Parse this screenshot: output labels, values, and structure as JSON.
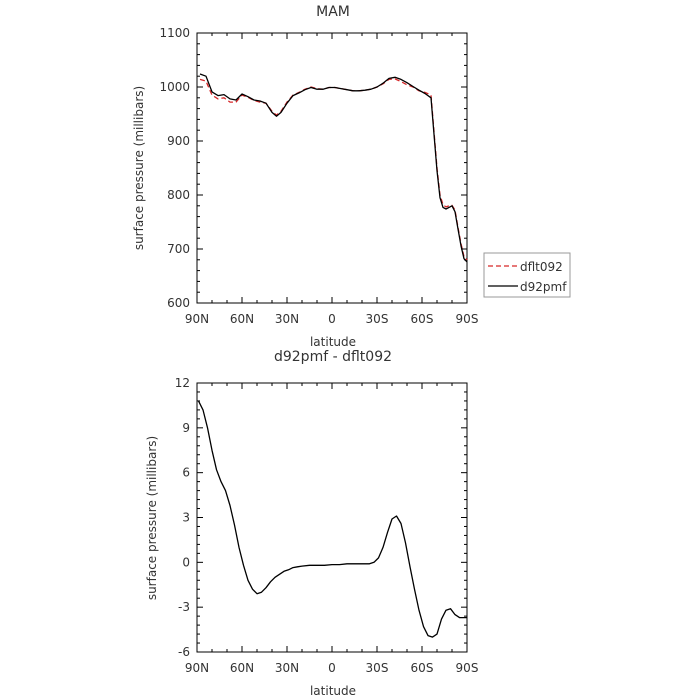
{
  "chart_data": [
    {
      "type": "line",
      "title": "MAM",
      "xlabel": "latitude",
      "ylabel": "surface pressure (millibars)",
      "xlim": [
        90,
        -90
      ],
      "ylim": [
        600,
        1100
      ],
      "x_ticks": [
        90,
        60,
        30,
        0,
        -30,
        -60,
        -90
      ],
      "x_tick_labels": [
        "90N",
        "60N",
        "30N",
        "0",
        "30S",
        "60S",
        "90S"
      ],
      "y_ticks": [
        600,
        700,
        800,
        900,
        1000,
        1100
      ],
      "y_tick_labels": [
        "600",
        "700",
        "800",
        "900",
        "1000",
        "1100"
      ],
      "legend_position": "right, outside plot",
      "x": [
        88,
        84,
        80,
        76,
        72,
        68,
        64,
        60,
        56,
        52,
        48,
        44,
        40,
        37,
        34,
        30,
        26,
        22,
        18,
        14,
        10,
        6,
        2,
        -2,
        -6,
        -10,
        -14,
        -18,
        -22,
        -26,
        -30,
        -34,
        -38,
        -42,
        -46,
        -50,
        -54,
        -58,
        -62,
        -66,
        -70,
        -72,
        -74,
        -76,
        -78,
        -80,
        -82,
        -84,
        -86,
        -88,
        -90
      ],
      "series": [
        {
          "name": "dflt092",
          "color": "#d62728",
          "dash": "5,3",
          "values": [
            1014,
            1011,
            985,
            978,
            980,
            972,
            972,
            985,
            981,
            975,
            972,
            970,
            955,
            948,
            955,
            972,
            985,
            990,
            996,
            1000,
            997,
            996,
            999,
            999,
            997,
            995,
            993,
            993,
            994,
            996,
            1000,
            1006,
            1014,
            1015,
            1010,
            1004,
            1000,
            993,
            990,
            985,
            850,
            800,
            782,
            778,
            780,
            781,
            772,
            740,
            710,
            686,
            680
          ]
        },
        {
          "name": "d92pmf",
          "color": "#000000",
          "dash": "",
          "values": [
            1024,
            1020,
            991,
            984,
            986,
            978,
            976,
            987,
            982,
            976,
            974,
            970,
            953,
            946,
            953,
            970,
            984,
            989,
            995,
            999,
            996,
            996,
            999,
            999,
            997,
            995,
            993,
            993,
            994,
            996,
            1000,
            1007,
            1016,
            1018,
            1014,
            1008,
            1001,
            994,
            988,
            980,
            845,
            795,
            777,
            774,
            777,
            780,
            769,
            737,
            706,
            682,
            676
          ]
        }
      ]
    },
    {
      "type": "line",
      "title": "d92pmf - dflt092",
      "xlabel": "latitude",
      "ylabel": "surface pressure (millibars)",
      "xlim": [
        90,
        -90
      ],
      "ylim": [
        -6,
        12
      ],
      "x_ticks": [
        90,
        60,
        30,
        0,
        -30,
        -60,
        -90
      ],
      "x_tick_labels": [
        "90N",
        "60N",
        "30N",
        "0",
        "30S",
        "60S",
        "90S"
      ],
      "y_ticks": [
        -6,
        -3,
        0,
        3,
        6,
        9,
        12
      ],
      "y_tick_labels": [
        "-6",
        "-3",
        "0",
        "3",
        "6",
        "9",
        "12"
      ],
      "x": [
        89,
        86,
        83,
        80,
        77,
        74,
        71,
        68,
        65,
        62,
        59,
        56,
        53,
        50,
        47,
        44,
        41,
        38,
        35,
        32,
        29,
        26,
        23,
        20,
        15,
        10,
        5,
        0,
        -5,
        -10,
        -15,
        -20,
        -25,
        -28,
        -31,
        -34,
        -37,
        -40,
        -43,
        -46,
        -49,
        -52,
        -55,
        -58,
        -61,
        -64,
        -67,
        -70,
        -73,
        -76,
        -79,
        -82,
        -85,
        -88,
        -90
      ],
      "series": [
        {
          "name": "",
          "color": "#000000",
          "dash": "",
          "values": [
            10.8,
            10.2,
            9.0,
            7.5,
            6.2,
            5.4,
            4.8,
            3.8,
            2.5,
            1.0,
            -0.2,
            -1.2,
            -1.8,
            -2.1,
            -2.0,
            -1.7,
            -1.3,
            -1.0,
            -0.8,
            -0.6,
            -0.5,
            -0.35,
            -0.3,
            -0.25,
            -0.2,
            -0.2,
            -0.2,
            -0.15,
            -0.15,
            -0.1,
            -0.1,
            -0.1,
            -0.1,
            0.0,
            0.3,
            1.0,
            2.0,
            2.9,
            3.1,
            2.6,
            1.3,
            -0.3,
            -1.8,
            -3.2,
            -4.3,
            -4.9,
            -5.0,
            -4.8,
            -3.8,
            -3.2,
            -3.1,
            -3.5,
            -3.7,
            -3.7,
            -3.7
          ]
        }
      ]
    }
  ]
}
